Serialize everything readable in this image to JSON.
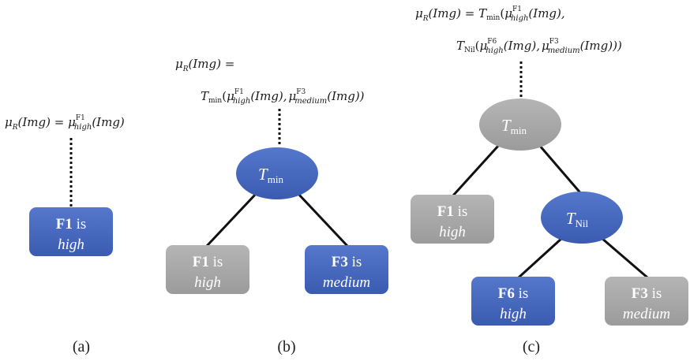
{
  "panels": {
    "a": {
      "label": "(a)",
      "formula": {
        "mu": "μ",
        "sub_r": "R",
        "arg": "(Img)",
        "eq": " = ",
        "mu2": "μ",
        "sup": "F1",
        "sub": "high",
        "arg2": "(Img)"
      },
      "node": {
        "feature": "F1",
        "is": "is",
        "value": "high"
      }
    },
    "b": {
      "label": "(b)",
      "formula_line1": {
        "mu": "μ",
        "sub_r": "R",
        "arg": "(Img)",
        "eq": " ="
      },
      "formula_line2": {
        "t": "T",
        "t_sub": "min",
        "open": "(",
        "mu1": "μ",
        "sup1": "F1",
        "sub1": "high",
        "arg1": "(Img),",
        "mu2": "μ",
        "sup2": "F3",
        "sub2": "medium",
        "arg2": "(Img))"
      },
      "root": {
        "t": "T",
        "sub": "min"
      },
      "left": {
        "feature": "F1",
        "is": "is",
        "value": "high"
      },
      "right": {
        "feature": "F3",
        "is": "is",
        "value": "medium"
      }
    },
    "c": {
      "label": "(c)",
      "formula_line1": {
        "mu": "μ",
        "sub_r": "R",
        "arg": "(Img)",
        "eq": " = ",
        "t": "T",
        "t_sub": "min",
        "open": "(",
        "mu1": "μ",
        "sup1": "F1",
        "sub1": "high",
        "arg1": "(Img),"
      },
      "formula_line2": {
        "t": "T",
        "t_sub": "Nil",
        "open": "(",
        "mu1": "μ",
        "sup1": "F6",
        "sub1": "high",
        "arg1": "(Img),",
        "mu2": "μ",
        "sup2": "F3",
        "sub2": "medium",
        "arg2": "(Img)))"
      },
      "root": {
        "t": "T",
        "sub": "min"
      },
      "left": {
        "feature": "F1",
        "is": "is",
        "value": "high"
      },
      "mid": {
        "t": "T",
        "sub": "Nil"
      },
      "mid_left": {
        "feature": "F6",
        "is": "is",
        "value": "high"
      },
      "mid_right": {
        "feature": "F3",
        "is": "is",
        "value": "medium"
      }
    }
  },
  "colors": {
    "blue": "#3f63b8",
    "gray": "#a6a6a6",
    "line": "#111111"
  }
}
